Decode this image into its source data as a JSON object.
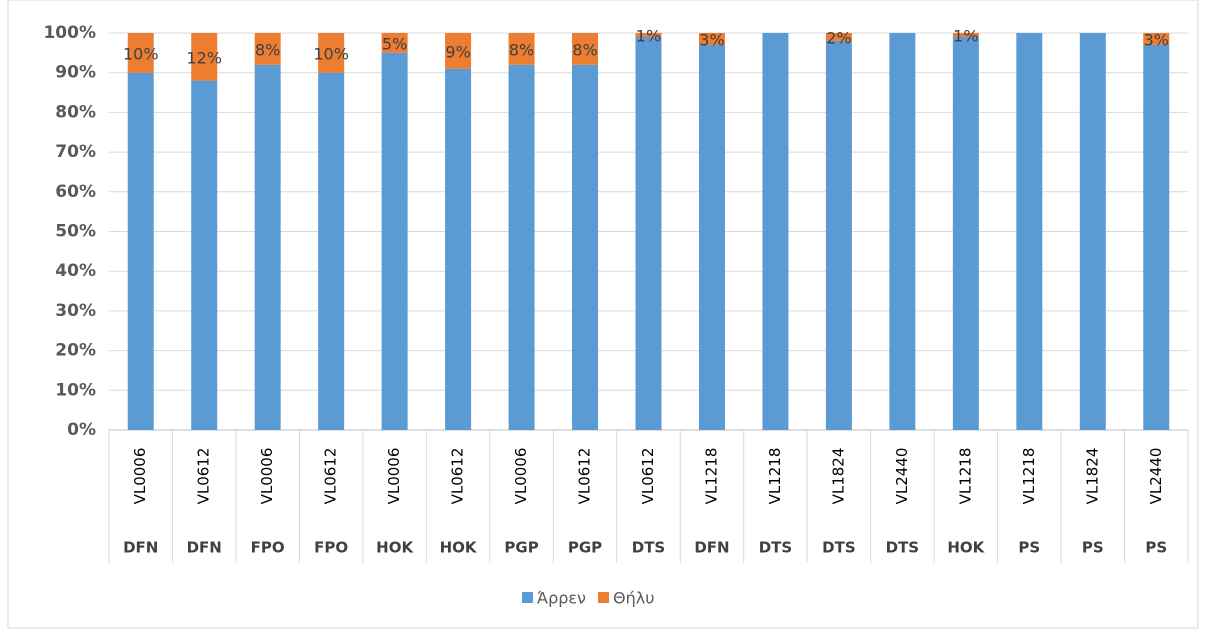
{
  "chart_data": {
    "type": "stacked_bar_100",
    "categories": [
      "VL0006",
      "VL0612",
      "VL0006",
      "VL0612",
      "VL0006",
      "VL0612",
      "VL0006",
      "VL0612",
      "VL0612",
      "VL1218",
      "VL1218",
      "VL1824",
      "VL2440",
      "VL1218",
      "VL1218",
      "VL1824",
      "VL2440"
    ],
    "category_groups": [
      "DFN",
      "DFN",
      "FPO",
      "FPO",
      "HOK",
      "HOK",
      "PGP",
      "PGP",
      "DTS",
      "DFN",
      "DTS",
      "DTS",
      "DTS",
      "HOK",
      "PS",
      "PS",
      "PS"
    ],
    "series": [
      {
        "name": "Άρρεν",
        "color": "#5b9bd5",
        "values": [
          90,
          88,
          92,
          90,
          95,
          91,
          92,
          92,
          99,
          97,
          100,
          98,
          100,
          99,
          100,
          100,
          97
        ]
      },
      {
        "name": "Θήλυ",
        "color": "#ed7d31",
        "values": [
          10,
          12,
          8,
          10,
          5,
          9,
          8,
          8,
          1,
          3,
          null,
          2,
          null,
          1,
          null,
          null,
          3
        ],
        "value_labels": [
          "10%",
          "12%",
          "8%",
          "10%",
          "5%",
          "9%",
          "8%",
          "8%",
          "1%",
          "3%",
          null,
          "2%",
          null,
          "1%",
          null,
          null,
          "3%"
        ]
      }
    ],
    "ylim": [
      0,
      100
    ],
    "yticks": [
      {
        "value": 0,
        "label": "0%"
      },
      {
        "value": 10,
        "label": "10%"
      },
      {
        "value": 20,
        "label": "20%"
      },
      {
        "value": 30,
        "label": "30%"
      },
      {
        "value": 40,
        "label": "40%"
      },
      {
        "value": 50,
        "label": "50%"
      },
      {
        "value": 60,
        "label": "60%"
      },
      {
        "value": 70,
        "label": "70%"
      },
      {
        "value": 80,
        "label": "80%"
      },
      {
        "value": 90,
        "label": "90%"
      },
      {
        "value": 100,
        "label": "100%"
      }
    ],
    "grid": true,
    "legend": "bottom"
  }
}
